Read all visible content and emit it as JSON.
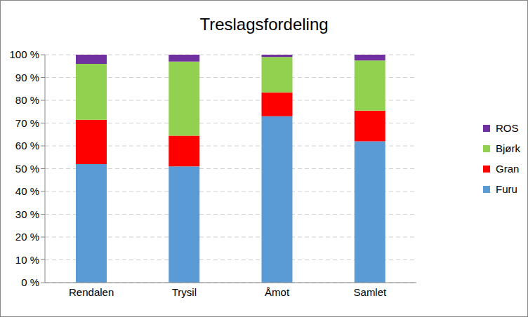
{
  "chart_data": {
    "type": "bar",
    "title": "Treslagsfordeling",
    "stacked": true,
    "grid": true,
    "legend": "right",
    "categories": [
      "Rendalen",
      "Trysil",
      "Åmot",
      "Samlet"
    ],
    "series": [
      {
        "name": "Furu",
        "color": "#5b9bd5",
        "values": [
          52,
          51,
          73,
          62
        ]
      },
      {
        "name": "Gran",
        "color": "#ff0000",
        "values": [
          19.5,
          13.5,
          10.5,
          13.5
        ]
      },
      {
        "name": "Bjørk",
        "color": "#92d050",
        "values": [
          24.5,
          32.5,
          15.5,
          22
        ]
      },
      {
        "name": "ROS",
        "color": "#7030a0",
        "values": [
          4,
          3,
          1,
          2.5
        ]
      }
    ],
    "ylim": [
      0,
      100
    ],
    "yticks": [
      {
        "value": 0,
        "label": "0 %"
      },
      {
        "value": 10,
        "label": "10 %"
      },
      {
        "value": 20,
        "label": "20 %"
      },
      {
        "value": 30,
        "label": "30 %"
      },
      {
        "value": 40,
        "label": "40 %"
      },
      {
        "value": 50,
        "label": "50 %"
      },
      {
        "value": 60,
        "label": "60 %"
      },
      {
        "value": 70,
        "label": "70 %"
      },
      {
        "value": 80,
        "label": "80 %"
      },
      {
        "value": 90,
        "label": "90 %"
      },
      {
        "value": 100,
        "label": "100 %"
      }
    ]
  }
}
